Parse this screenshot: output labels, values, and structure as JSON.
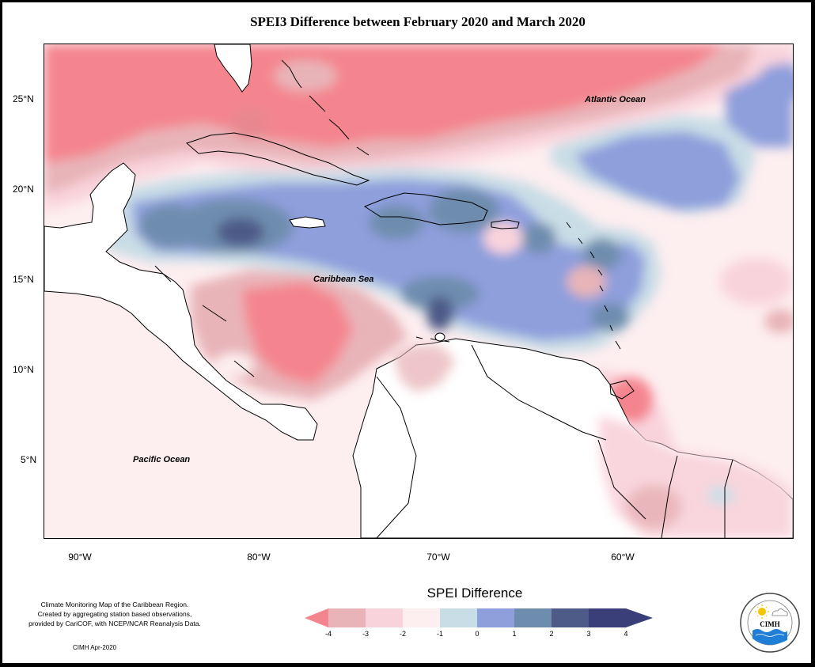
{
  "title": "SPEI3 Difference between February 2020 and March 2020",
  "map": {
    "latitude_labels": [
      "25°N",
      "20°N",
      "15°N",
      "10°N",
      "5°N"
    ],
    "longitude_labels": [
      "90°W",
      "80°W",
      "70°W",
      "60°W"
    ],
    "places": {
      "atlantic": "Atlantic Ocean",
      "caribbean": "Caribbean Sea",
      "pacific": "Pacific Ocean"
    }
  },
  "legend": {
    "title": "SPEI Difference",
    "tick_labels": [
      "-4",
      "-3",
      "-2",
      "-1",
      "0",
      "1",
      "2",
      "3",
      "4"
    ],
    "colors": [
      "#f4858f",
      "#e8b4b8",
      "#f9d3dc",
      "#fdeef0",
      "#c9dde6",
      "#8e9fdc",
      "#6e8dae",
      "#4e5a88",
      "#3a3f7a"
    ]
  },
  "credits": {
    "lines": [
      "Climate Monitoring Map of the Caribbean Region.",
      "Created by aggregating station based observations,",
      "provided by CariCOF, with NCEP/NCAR Reanalysis Data."
    ],
    "issued": "CIMH Apr-2020"
  },
  "logo": {
    "text": "CIMH"
  }
}
